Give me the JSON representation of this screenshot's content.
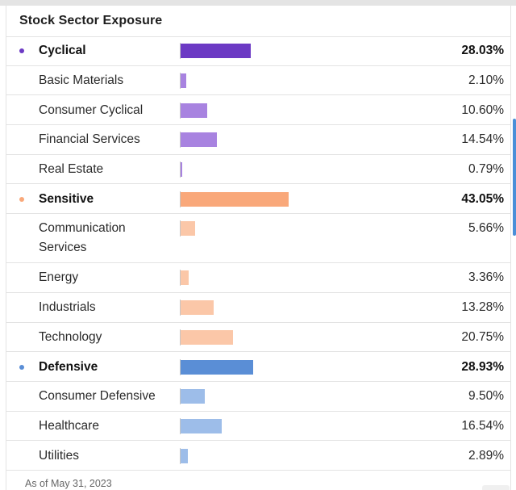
{
  "title": "Stock Sector Exposure",
  "footer": "As of May 31, 2023",
  "colors": {
    "cyclical": "#6c3ac4",
    "cyclical_sub": "#a883e0",
    "sensitive": "#f9a87a",
    "sensitive_sub": "#fbc7a8",
    "defensive": "#5a8ed6",
    "defensive_sub": "#9dbde9"
  },
  "chart_data": {
    "type": "bar",
    "orientation": "horizontal",
    "title": "Stock Sector Exposure",
    "unit": "%",
    "rows": [
      {
        "label": "Cyclical",
        "value": 28.03,
        "display": "28.03%",
        "group": true,
        "color_key": "cyclical"
      },
      {
        "label": "Basic Materials",
        "value": 2.1,
        "display": "2.10%",
        "group": false,
        "color_key": "cyclical_sub"
      },
      {
        "label": "Consumer Cyclical",
        "value": 10.6,
        "display": "10.60%",
        "group": false,
        "color_key": "cyclical_sub"
      },
      {
        "label": "Financial Services",
        "value": 14.54,
        "display": "14.54%",
        "group": false,
        "color_key": "cyclical_sub"
      },
      {
        "label": "Real Estate",
        "value": 0.79,
        "display": "0.79%",
        "group": false,
        "color_key": "cyclical_sub"
      },
      {
        "label": "Sensitive",
        "value": 43.05,
        "display": "43.05%",
        "group": true,
        "color_key": "sensitive"
      },
      {
        "label": "Communication Services",
        "value": 5.66,
        "display": "5.66%",
        "group": false,
        "color_key": "sensitive_sub",
        "tall": true
      },
      {
        "label": "Energy",
        "value": 3.36,
        "display": "3.36%",
        "group": false,
        "color_key": "sensitive_sub"
      },
      {
        "label": "Industrials",
        "value": 13.28,
        "display": "13.28%",
        "group": false,
        "color_key": "sensitive_sub"
      },
      {
        "label": "Technology",
        "value": 20.75,
        "display": "20.75%",
        "group": false,
        "color_key": "sensitive_sub"
      },
      {
        "label": "Defensive",
        "value": 28.93,
        "display": "28.93%",
        "group": true,
        "color_key": "defensive"
      },
      {
        "label": "Consumer Defensive",
        "value": 9.5,
        "display": "9.50%",
        "group": false,
        "color_key": "defensive_sub"
      },
      {
        "label": "Healthcare",
        "value": 16.54,
        "display": "16.54%",
        "group": false,
        "color_key": "defensive_sub"
      },
      {
        "label": "Utilities",
        "value": 2.89,
        "display": "2.89%",
        "group": false,
        "color_key": "defensive_sub"
      }
    ]
  }
}
